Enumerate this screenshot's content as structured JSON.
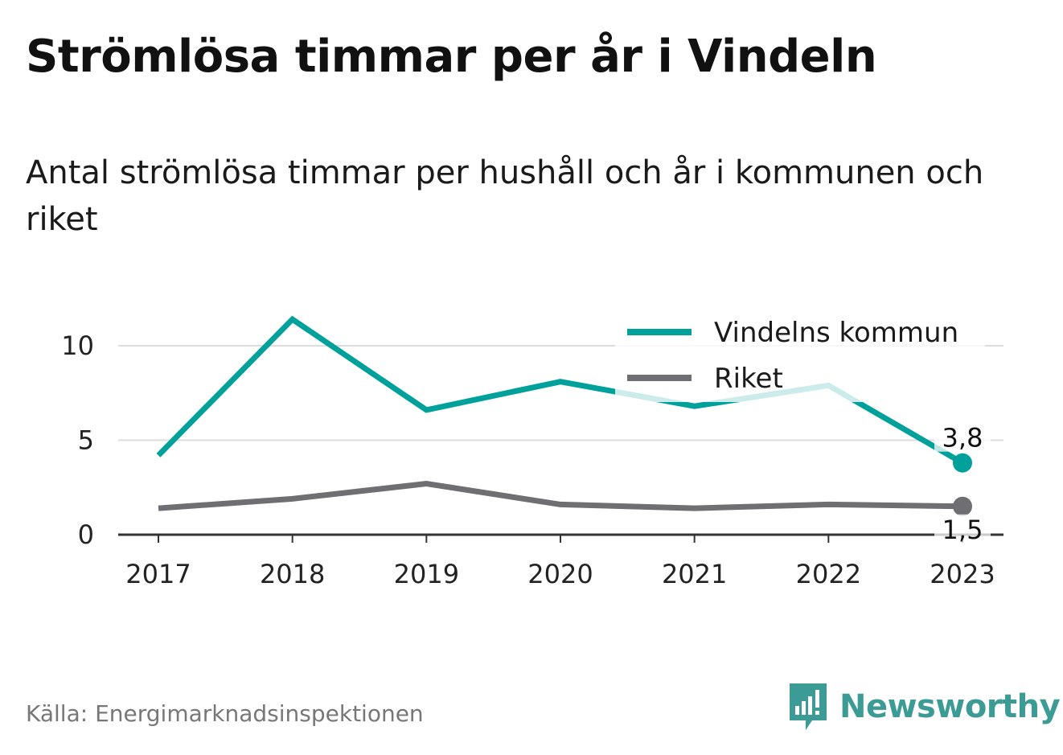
{
  "title": "Strömlösa timmar per år i Vindeln",
  "subtitle": "Antal strömlösa timmar per hushåll och år i kommunen och riket",
  "source": "Källa: Energimarknadsinspektionen",
  "brand": {
    "name": "Newsworthy",
    "icon": "newsworthy-logo-icon",
    "color": "#3d9b95"
  },
  "chart_data": {
    "type": "line",
    "x": [
      "2017",
      "2018",
      "2019",
      "2020",
      "2021",
      "2022",
      "2023"
    ],
    "series": [
      {
        "name": "Vindelns kommun",
        "color": "#00a19a",
        "values": [
          4.2,
          11.4,
          6.6,
          8.1,
          6.8,
          7.9,
          3.8
        ],
        "end_label": "3,8"
      },
      {
        "name": "Riket",
        "color": "#6e6e73",
        "values": [
          1.4,
          1.9,
          2.7,
          1.6,
          1.4,
          1.6,
          1.5
        ],
        "end_label": "1,5"
      }
    ],
    "y_ticks": [
      "0",
      "5",
      "10"
    ],
    "ylim": [
      0,
      12.5
    ],
    "grid": true,
    "legend_position": "top-right"
  }
}
